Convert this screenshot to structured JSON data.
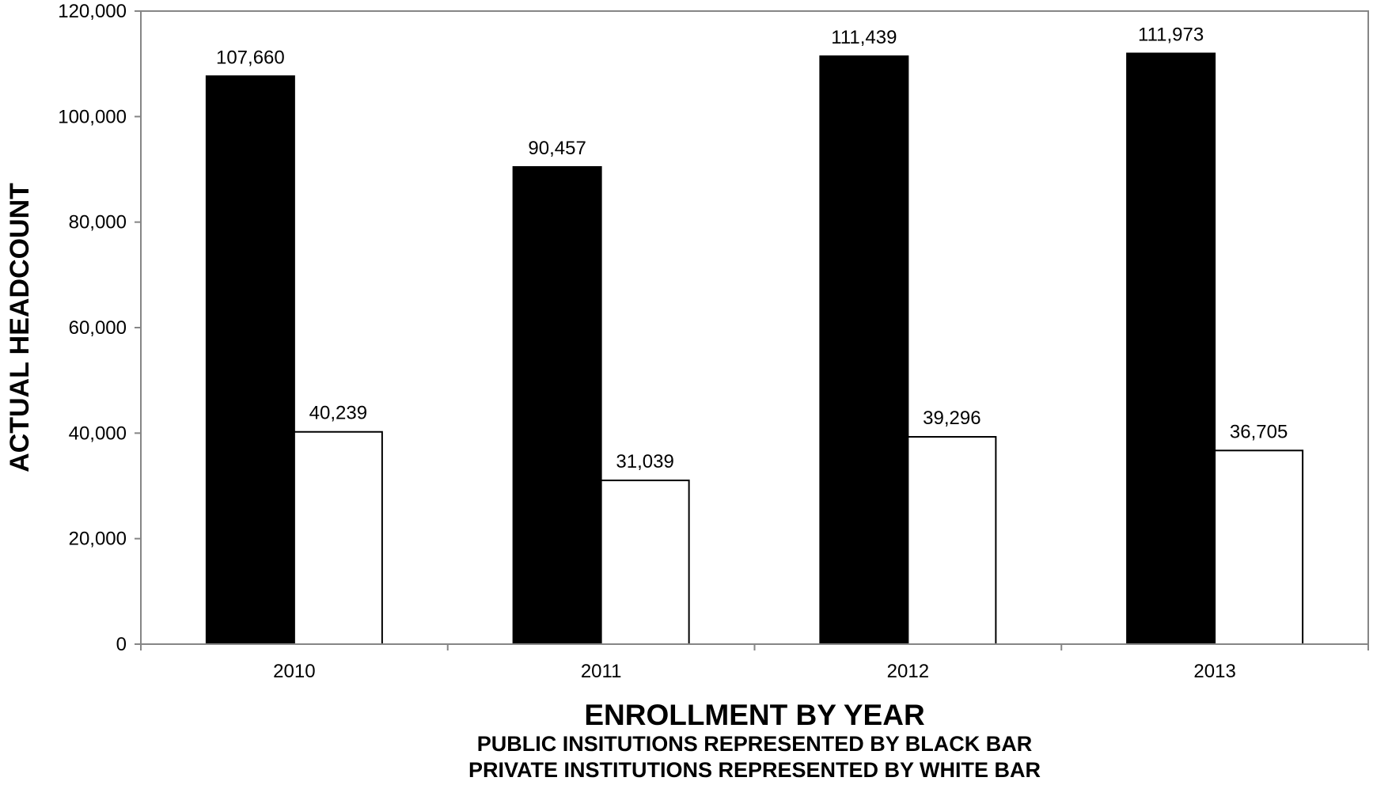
{
  "chart_data": {
    "type": "bar",
    "categories": [
      "2010",
      "2011",
      "2012",
      "2013"
    ],
    "series": [
      {
        "values": [
          107660,
          90457,
          111439,
          111973
        ],
        "color": "#000000"
      },
      {
        "values": [
          40239,
          31039,
          39296,
          36705
        ],
        "color": "#ffffff"
      }
    ],
    "data_labels": [
      [
        "107,660",
        "90,457",
        "111,439",
        "111,973"
      ],
      [
        "40,239",
        "31,039",
        "39,296",
        "36,705"
      ]
    ],
    "ylim": [
      0,
      120000
    ],
    "yticks": [
      0,
      20000,
      40000,
      60000,
      80000,
      100000,
      120000
    ],
    "ytick_labels": [
      "0",
      "20,000",
      "40,000",
      "60,000",
      "80,000",
      "100,000",
      "120,000"
    ],
    "ylabel": "ACTUAL HEADCOUNT",
    "xlabel": "ENROLLMENT BY YEAR",
    "notes": [
      "PUBLIC INSITUTIONS REPRESENTED BY BLACK BAR",
      "PRIVATE INSTITUTIONS REPRESENTED BY WHITE BAR"
    ],
    "grid": false,
    "legend": "none"
  }
}
